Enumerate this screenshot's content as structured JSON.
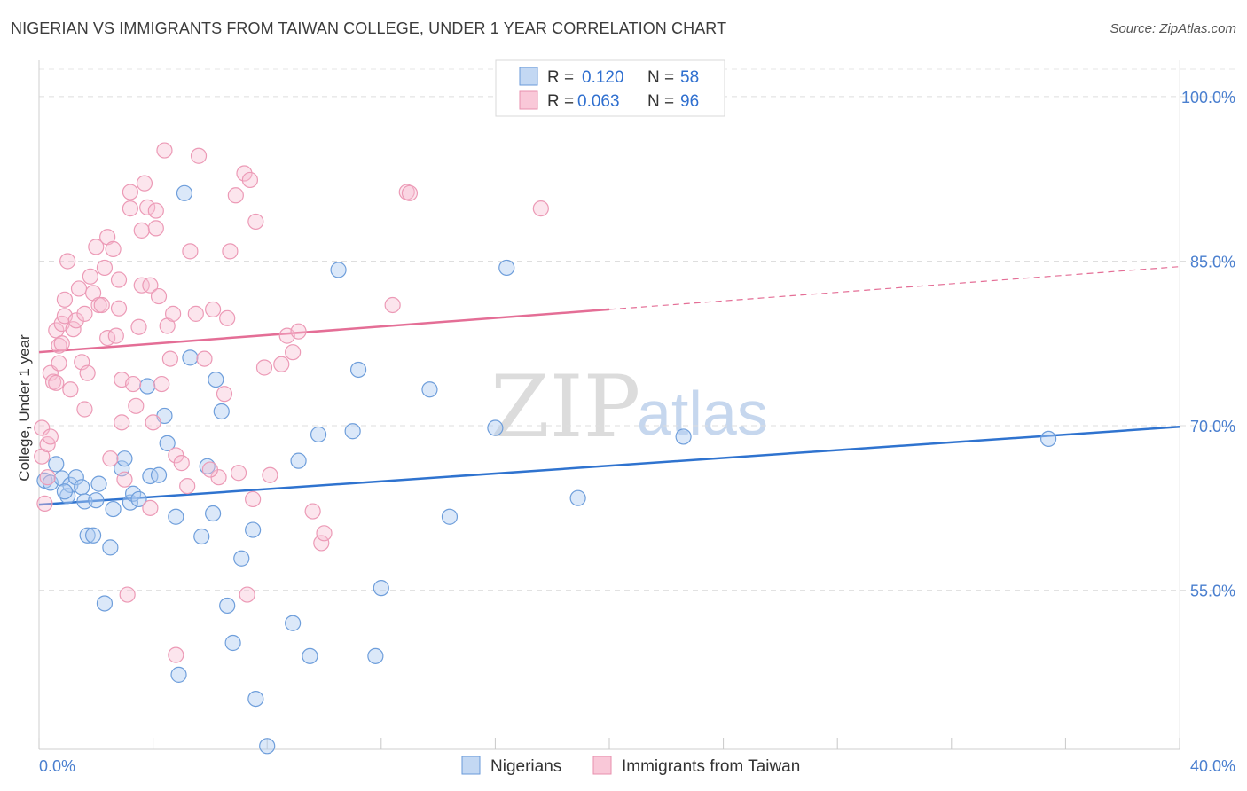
{
  "header": {
    "title": "NIGERIAN VS IMMIGRANTS FROM TAIWAN COLLEGE, UNDER 1 YEAR CORRELATION CHART",
    "source": "Source: ZipAtlas.com"
  },
  "watermark": {
    "part1": "ZIP",
    "part2": "atlas"
  },
  "legend": {
    "entries": [
      {
        "r_label": "R =",
        "r_value": "0.120",
        "n_label": "N =",
        "n_value": "58"
      },
      {
        "r_label": "R =",
        "r_value": "0.063",
        "n_label": "N =",
        "n_value": "96"
      }
    ]
  },
  "bottom_legend": [
    "Nigerians",
    "Immigrants from Taiwan"
  ],
  "chart_data": {
    "type": "scatter",
    "title": "NIGERIAN VS IMMIGRANTS FROM TAIWAN COLLEGE, UNDER 1 YEAR CORRELATION CHART",
    "xlabel": "",
    "ylabel": "College, Under 1 year",
    "xlim": [
      0,
      40
    ],
    "ylim": [
      40.5,
      102.5
    ],
    "x_tick_labels": [
      "0.0%",
      "40.0%"
    ],
    "y_ticks": [
      100,
      85,
      70,
      55
    ],
    "y_tick_labels": [
      "100.0%",
      "85.0%",
      "70.0%",
      "55.0%"
    ],
    "grid": true,
    "legend_position": "top-center",
    "colors": {
      "nigerians": "#5b8fd6",
      "taiwan": "#ec8fad",
      "nigerians_line": "#2f73cf",
      "taiwan_line": "#e46e96"
    },
    "series": [
      {
        "name": "Nigerians",
        "trend": {
          "x0": 0,
          "y0": 62.8,
          "x1": 40,
          "y1": 69.9,
          "dashed_from": null
        },
        "points": [
          [
            0.2,
            65.0
          ],
          [
            0.4,
            64.8
          ],
          [
            0.6,
            66.5
          ],
          [
            0.8,
            65.2
          ],
          [
            1.0,
            63.6
          ],
          [
            1.1,
            64.6
          ],
          [
            1.3,
            65.3
          ],
          [
            1.5,
            64.4
          ],
          [
            1.6,
            63.1
          ],
          [
            1.7,
            60.0
          ],
          [
            1.9,
            60.0
          ],
          [
            2.1,
            64.7
          ],
          [
            2.3,
            53.8
          ],
          [
            2.5,
            58.9
          ],
          [
            2.6,
            62.4
          ],
          [
            2.9,
            66.1
          ],
          [
            3.0,
            67.0
          ],
          [
            3.2,
            63.0
          ],
          [
            3.3,
            63.8
          ],
          [
            3.5,
            63.3
          ],
          [
            3.8,
            73.6
          ],
          [
            3.9,
            65.4
          ],
          [
            4.2,
            65.5
          ],
          [
            4.4,
            70.9
          ],
          [
            4.5,
            68.4
          ],
          [
            4.8,
            61.7
          ],
          [
            4.9,
            47.3
          ],
          [
            5.1,
            91.2
          ],
          [
            5.3,
            76.2
          ],
          [
            5.7,
            59.9
          ],
          [
            5.9,
            66.3
          ],
          [
            6.1,
            62.0
          ],
          [
            6.2,
            74.2
          ],
          [
            6.4,
            71.3
          ],
          [
            6.6,
            53.6
          ],
          [
            6.8,
            50.2
          ],
          [
            7.1,
            57.9
          ],
          [
            7.5,
            60.5
          ],
          [
            7.6,
            45.1
          ],
          [
            8.0,
            40.8
          ],
          [
            8.9,
            52.0
          ],
          [
            9.1,
            66.8
          ],
          [
            9.5,
            49.0
          ],
          [
            9.8,
            69.2
          ],
          [
            10.5,
            84.2
          ],
          [
            11.0,
            69.5
          ],
          [
            11.2,
            75.1
          ],
          [
            11.8,
            49.0
          ],
          [
            12.0,
            55.2
          ],
          [
            13.7,
            73.3
          ],
          [
            14.4,
            61.7
          ],
          [
            16.0,
            69.8
          ],
          [
            16.4,
            84.4
          ],
          [
            18.9,
            63.4
          ],
          [
            22.6,
            69.0
          ],
          [
            35.4,
            68.8
          ],
          [
            0.9,
            64.0
          ],
          [
            2.0,
            63.2
          ]
        ]
      },
      {
        "name": "Immigrants from Taiwan",
        "trend": {
          "x0": 0,
          "y0": 76.7,
          "x1": 40,
          "y1": 84.5,
          "dashed_from": 20
        },
        "points": [
          [
            0.1,
            69.8
          ],
          [
            0.1,
            67.2
          ],
          [
            0.2,
            62.9
          ],
          [
            0.3,
            68.3
          ],
          [
            0.3,
            65.3
          ],
          [
            0.4,
            69.0
          ],
          [
            0.4,
            74.8
          ],
          [
            0.5,
            74.0
          ],
          [
            0.6,
            73.9
          ],
          [
            0.6,
            78.7
          ],
          [
            0.7,
            77.3
          ],
          [
            0.7,
            75.7
          ],
          [
            0.8,
            79.3
          ],
          [
            0.9,
            80.0
          ],
          [
            0.9,
            81.5
          ],
          [
            1.0,
            85.0
          ],
          [
            1.1,
            73.3
          ],
          [
            1.2,
            78.8
          ],
          [
            1.3,
            79.6
          ],
          [
            1.4,
            82.5
          ],
          [
            1.5,
            75.8
          ],
          [
            1.6,
            71.5
          ],
          [
            1.7,
            74.8
          ],
          [
            1.8,
            83.6
          ],
          [
            1.9,
            82.1
          ],
          [
            2.0,
            86.3
          ],
          [
            2.1,
            81.0
          ],
          [
            2.2,
            81.0
          ],
          [
            2.3,
            84.4
          ],
          [
            2.4,
            78.0
          ],
          [
            2.4,
            87.2
          ],
          [
            2.5,
            67.0
          ],
          [
            2.6,
            86.1
          ],
          [
            2.7,
            78.2
          ],
          [
            2.8,
            83.3
          ],
          [
            2.9,
            70.3
          ],
          [
            2.9,
            74.2
          ],
          [
            3.0,
            65.1
          ],
          [
            3.1,
            54.6
          ],
          [
            3.2,
            91.3
          ],
          [
            3.2,
            89.8
          ],
          [
            3.3,
            73.8
          ],
          [
            3.4,
            71.8
          ],
          [
            3.5,
            79.0
          ],
          [
            3.6,
            82.8
          ],
          [
            3.7,
            92.1
          ],
          [
            3.8,
            89.9
          ],
          [
            3.9,
            62.5
          ],
          [
            3.9,
            82.8
          ],
          [
            4.0,
            70.3
          ],
          [
            4.1,
            89.6
          ],
          [
            4.1,
            88.0
          ],
          [
            4.2,
            81.8
          ],
          [
            4.3,
            73.8
          ],
          [
            4.4,
            95.1
          ],
          [
            4.5,
            79.1
          ],
          [
            4.6,
            76.1
          ],
          [
            4.7,
            80.2
          ],
          [
            4.8,
            67.3
          ],
          [
            4.8,
            49.1
          ],
          [
            5.0,
            66.6
          ],
          [
            5.2,
            64.5
          ],
          [
            5.3,
            85.9
          ],
          [
            5.5,
            80.2
          ],
          [
            5.6,
            94.6
          ],
          [
            5.8,
            76.1
          ],
          [
            6.1,
            80.6
          ],
          [
            6.3,
            65.3
          ],
          [
            6.5,
            72.9
          ],
          [
            6.6,
            79.8
          ],
          [
            6.7,
            85.9
          ],
          [
            6.9,
            91.0
          ],
          [
            7.0,
            65.7
          ],
          [
            7.2,
            93.0
          ],
          [
            7.3,
            54.6
          ],
          [
            7.4,
            92.4
          ],
          [
            7.5,
            63.3
          ],
          [
            7.6,
            88.6
          ],
          [
            7.9,
            75.3
          ],
          [
            8.1,
            65.5
          ],
          [
            8.5,
            75.6
          ],
          [
            8.7,
            78.2
          ],
          [
            8.9,
            76.7
          ],
          [
            9.1,
            78.6
          ],
          [
            9.6,
            62.2
          ],
          [
            9.9,
            59.3
          ],
          [
            10.0,
            60.2
          ],
          [
            12.4,
            81.0
          ],
          [
            12.9,
            91.3
          ],
          [
            13.0,
            91.2
          ],
          [
            17.6,
            89.8
          ],
          [
            3.6,
            87.8
          ],
          [
            2.8,
            80.7
          ],
          [
            1.6,
            80.2
          ],
          [
            0.8,
            77.5
          ],
          [
            6.0,
            66.0
          ]
        ]
      }
    ]
  }
}
